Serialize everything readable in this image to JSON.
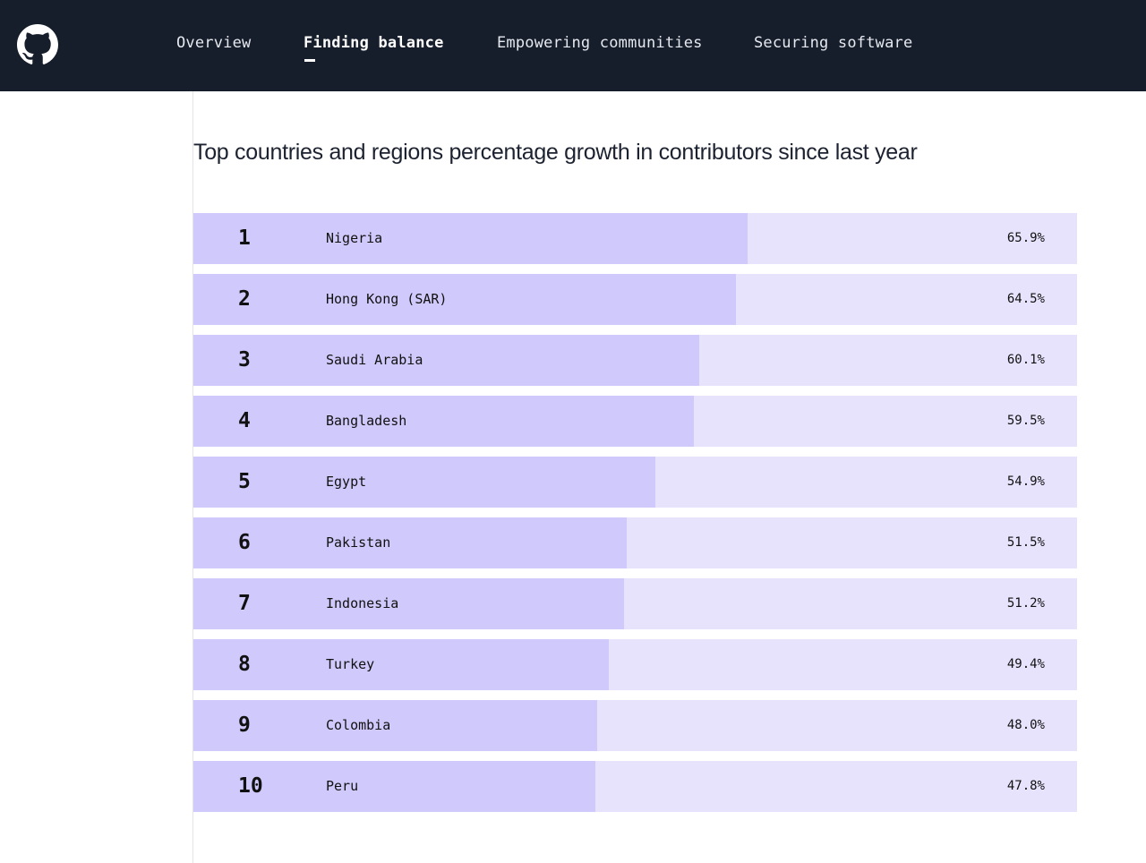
{
  "nav": {
    "logo_icon": "github-octocat-icon",
    "tabs": [
      {
        "label": "Overview",
        "active": false
      },
      {
        "label": "Finding balance",
        "active": true
      },
      {
        "label": "Empowering communities",
        "active": false
      },
      {
        "label": "Securing software",
        "active": false
      }
    ]
  },
  "colors": {
    "nav_background": "#161d2b",
    "bar_fill": "#d0c9fb",
    "bar_track": "#e7e3fd",
    "text": "#111111"
  },
  "chart_data": {
    "type": "bar",
    "orientation": "horizontal",
    "title": "Top countries and regions percentage growth in contributors since last year",
    "xlim": [
      0,
      105
    ],
    "categories": [
      "Nigeria",
      "Hong Kong (SAR)",
      "Saudi Arabia",
      "Bangladesh",
      "Egypt",
      "Pakistan",
      "Indonesia",
      "Turkey",
      "Colombia",
      "Peru"
    ],
    "ranks": [
      "1",
      "2",
      "3",
      "4",
      "5",
      "6",
      "7",
      "8",
      "9",
      "10"
    ],
    "values": [
      65.9,
      64.5,
      60.1,
      59.5,
      54.9,
      51.5,
      51.2,
      49.4,
      48.0,
      47.8
    ],
    "value_labels": [
      "65.9%",
      "64.5%",
      "60.1%",
      "59.5%",
      "54.9%",
      "51.5%",
      "51.2%",
      "49.4%",
      "48.0%",
      "47.8%"
    ]
  }
}
